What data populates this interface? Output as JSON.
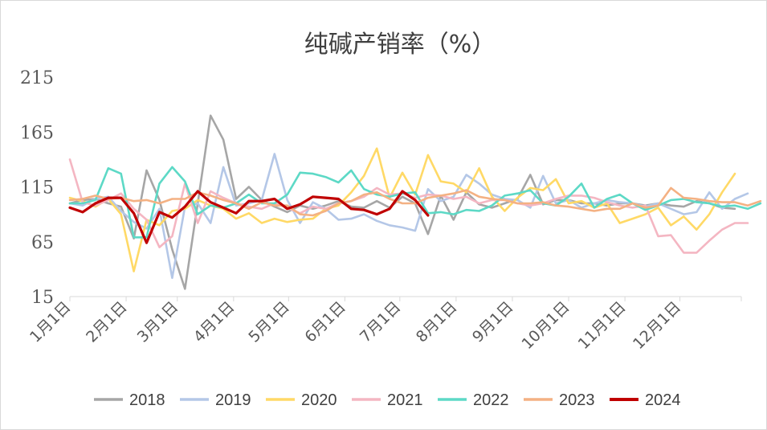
{
  "chart_data": {
    "type": "line",
    "title": "纯碱产销率（%）",
    "xlabel": "",
    "ylabel": "",
    "ylim": [
      15,
      215
    ],
    "yticks": [
      "215",
      "165",
      "115",
      "65",
      "15"
    ],
    "ytick_values": [
      215,
      165,
      115,
      65,
      15
    ],
    "x_labels": [
      "1月1日",
      "2月1日",
      "3月1日",
      "4月1日",
      "5月1日",
      "6月1日",
      "7月1日",
      "8月1日",
      "9月1日",
      "10月1日",
      "11月1日",
      "12月1日"
    ],
    "x_label_weeks": [
      0,
      4.4,
      8.4,
      12.8,
      17.1,
      21.5,
      25.8,
      30.2,
      34.6,
      39.0,
      43.4,
      47.7
    ],
    "x_range_weeks": [
      0,
      52.5
    ],
    "grid": false,
    "legend_position": "bottom",
    "series": [
      {
        "name": "2018",
        "color": "#a6a6a6",
        "values": [
          100,
          103,
          104,
          100,
          97,
          68,
          130,
          103,
          58,
          22,
          100,
          180,
          158,
          104,
          115,
          103,
          97,
          92,
          98,
          95,
          98,
          102,
          97,
          96,
          102,
          96,
          106,
          100,
          72,
          107,
          85,
          110,
          99,
          96,
          100,
          104,
          126,
          99,
          103,
          103,
          100,
          100,
          98,
          100,
          100,
          98,
          100,
          98,
          97,
          102,
          100,
          96,
          95
        ]
      },
      {
        "name": "2019",
        "color": "#b4c7e7",
        "values": [
          100,
          98,
          104,
          106,
          93,
          83,
          77,
          95,
          32,
          97,
          100,
          82,
          133,
          98,
          100,
          103,
          145,
          103,
          82,
          101,
          95,
          85,
          86,
          90,
          84,
          80,
          78,
          75,
          113,
          102,
          106,
          126,
          118,
          108,
          104,
          103,
          96,
          125,
          100,
          103,
          96,
          100,
          103,
          101,
          100,
          97,
          100,
          95,
          90,
          92,
          110,
          95,
          104,
          109
        ]
      },
      {
        "name": "2020",
        "color": "#ffd966",
        "values": [
          105,
          102,
          97,
          104,
          90,
          38,
          85,
          80,
          93,
          95,
          103,
          98,
          95,
          86,
          91,
          82,
          86,
          83,
          85,
          86,
          95,
          98,
          110,
          125,
          150,
          105,
          128,
          108,
          144,
          120,
          118,
          110,
          132,
          106,
          93,
          105,
          114,
          112,
          122,
          100,
          102,
          96,
          100,
          82,
          86,
          90,
          96,
          80,
          88,
          76,
          90,
          110,
          127
        ]
      },
      {
        "name": "2021",
        "color": "#f4b6c2",
        "values": [
          140,
          101,
          98,
          103,
          109,
          95,
          85,
          60,
          70,
          118,
          82,
          111,
          105,
          100,
          97,
          95,
          100,
          96,
          91,
          97,
          95,
          100,
          102,
          106,
          114,
          108,
          109,
          105,
          108,
          107,
          104,
          106,
          100,
          103,
          103,
          100,
          98,
          100,
          104,
          107,
          107,
          105,
          101,
          98,
          96,
          98,
          70,
          71,
          55,
          55,
          66,
          76,
          82,
          82
        ]
      },
      {
        "name": "2022",
        "color": "#5dd9c6",
        "values": [
          100,
          100,
          103,
          132,
          127,
          69,
          69,
          118,
          133,
          120,
          90,
          98,
          96,
          100,
          108,
          100,
          100,
          108,
          128,
          127,
          124,
          119,
          130,
          113,
          108,
          106,
          109,
          110,
          91,
          92,
          90,
          94,
          93,
          98,
          107,
          109,
          112,
          100,
          98,
          106,
          118,
          96,
          104,
          108,
          100,
          94,
          98,
          103,
          104,
          101,
          100,
          97,
          98,
          95,
          100
        ]
      },
      {
        "name": "2023",
        "color": "#f4b183",
        "values": [
          103,
          104,
          107,
          104,
          105,
          102,
          103,
          100,
          104,
          104,
          110,
          107,
          103,
          100,
          95,
          101,
          98,
          98,
          90,
          89,
          93,
          100,
          102,
          108,
          110,
          104,
          100,
          100,
          105,
          107,
          109,
          112,
          106,
          104,
          103,
          100,
          100,
          101,
          98,
          97,
          95,
          93,
          95,
          95,
          100,
          96,
          98,
          114,
          105,
          104,
          102,
          101,
          101,
          98,
          102
        ]
      },
      {
        "name": "2024",
        "color": "#c00000",
        "values": [
          96,
          92,
          100,
          105,
          105,
          91,
          64,
          92,
          87,
          97,
          111,
          101,
          96,
          91,
          102,
          102,
          104,
          95,
          99,
          106,
          105,
          104,
          95,
          94,
          90,
          95,
          111,
          103,
          89
        ]
      }
    ]
  }
}
